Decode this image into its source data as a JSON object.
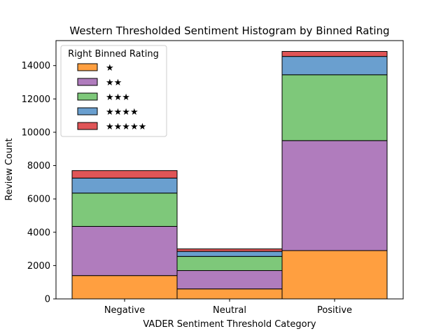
{
  "chart_data": {
    "type": "bar",
    "stacked": true,
    "title": "Western Thresholded Sentiment Histogram by Binned Rating",
    "xlabel": "VADER Sentiment Threshold Category",
    "ylabel": "Review Count",
    "categories": [
      "Negative",
      "Neutral",
      "Positive"
    ],
    "ylim": [
      0,
      15500
    ],
    "yticks": [
      0,
      2000,
      4000,
      6000,
      8000,
      10000,
      12000,
      14000
    ],
    "grid": false,
    "legend": {
      "title": "Right Binned Rating",
      "placement": "top-left"
    },
    "series": [
      {
        "name": "★",
        "color": "#ff9f40",
        "values": [
          1400,
          600,
          2900
        ]
      },
      {
        "name": "★★",
        "color": "#b07cbd",
        "values": [
          2950,
          1100,
          6600
        ]
      },
      {
        "name": "★★★",
        "color": "#7ec87a",
        "values": [
          2000,
          850,
          3950
        ]
      },
      {
        "name": "★★★★",
        "color": "#6a9fcf",
        "values": [
          900,
          300,
          1100
        ]
      },
      {
        "name": "★★★★★",
        "color": "#e05557",
        "values": [
          450,
          150,
          300
        ]
      }
    ]
  }
}
